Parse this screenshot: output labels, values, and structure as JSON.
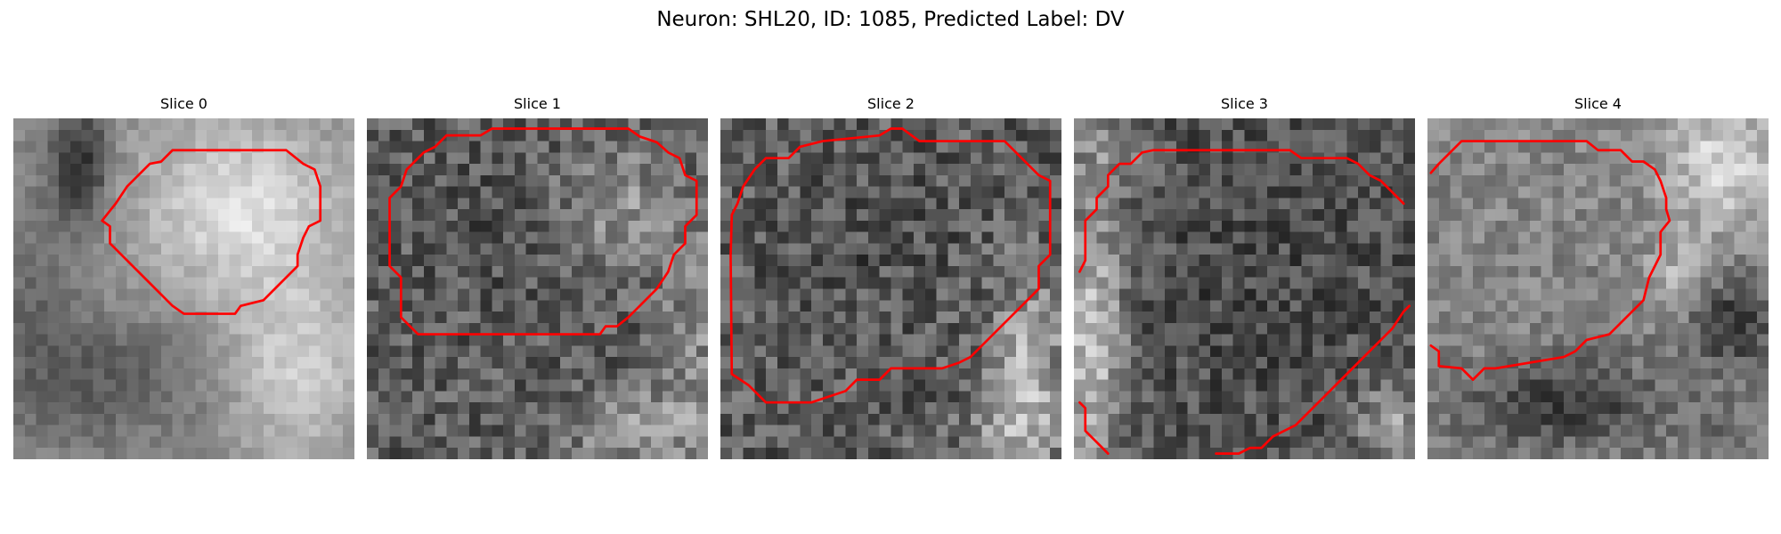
{
  "figure": {
    "title": "Neuron: SHL20, ID: 1085, Predicted Label: DV"
  },
  "colors": {
    "background": "#ffffff",
    "contour": "#ff0000",
    "colormap": "gray"
  },
  "image_grid": 30,
  "panels": [
    {
      "title": "Slice 0",
      "tone": "light-right, dark-left-blob",
      "contours": [
        [
          [
            14,
            2.8
          ],
          [
            24,
            2.8
          ],
          [
            25.5,
            4
          ],
          [
            26.5,
            4.5
          ],
          [
            27,
            6
          ],
          [
            27,
            9
          ],
          [
            26,
            9.5
          ],
          [
            25.5,
            10.5
          ],
          [
            25,
            12
          ],
          [
            25,
            13
          ],
          [
            23,
            15
          ],
          [
            22,
            16
          ],
          [
            20,
            16.5
          ],
          [
            19.5,
            17.2
          ],
          [
            15,
            17.2
          ],
          [
            14,
            16.5
          ],
          [
            12,
            14.5
          ],
          [
            9.5,
            12
          ],
          [
            8.5,
            11
          ],
          [
            8.5,
            9.5
          ],
          [
            7.8,
            9
          ],
          [
            9,
            7.5
          ],
          [
            10,
            6
          ],
          [
            11,
            5
          ],
          [
            12,
            4
          ],
          [
            13,
            3.8
          ],
          [
            14,
            2.8
          ]
        ]
      ]
    },
    {
      "title": "Slice 1",
      "tone": "dark-textured, light-lower-right",
      "contours": [
        [
          [
            11,
            0.9
          ],
          [
            23,
            0.9
          ],
          [
            24,
            1.6
          ],
          [
            25.5,
            2.1
          ],
          [
            26.5,
            3
          ],
          [
            27.5,
            3.5
          ],
          [
            28,
            5
          ],
          [
            29,
            5.5
          ],
          [
            29,
            8.5
          ],
          [
            28,
            9.5
          ],
          [
            28,
            11
          ],
          [
            27,
            12
          ],
          [
            26.5,
            13.5
          ],
          [
            25.5,
            15
          ],
          [
            24,
            16.5
          ],
          [
            23,
            17.5
          ],
          [
            22,
            18.3
          ],
          [
            21,
            18.3
          ],
          [
            20.5,
            19
          ],
          [
            4.5,
            19
          ],
          [
            3,
            17.5
          ],
          [
            3,
            14
          ],
          [
            2,
            13
          ],
          [
            2,
            7
          ],
          [
            3,
            6
          ],
          [
            3.5,
            4.5
          ],
          [
            4,
            4
          ],
          [
            5,
            3
          ],
          [
            6,
            2.5
          ],
          [
            7,
            1.5
          ],
          [
            10,
            1.5
          ],
          [
            11,
            0.9
          ]
        ]
      ]
    },
    {
      "title": "Slice 2",
      "tone": "dark-textured, light-right-edge",
      "contours": [
        [
          [
            15,
            0.9
          ],
          [
            16,
            0.9
          ],
          [
            17.5,
            2
          ],
          [
            25,
            2
          ],
          [
            26,
            3
          ],
          [
            27,
            4
          ],
          [
            28,
            5
          ],
          [
            29,
            5.5
          ],
          [
            29,
            12
          ],
          [
            28,
            13
          ],
          [
            28,
            15
          ],
          [
            26,
            17
          ],
          [
            24,
            19
          ],
          [
            22,
            21
          ],
          [
            21,
            21.5
          ],
          [
            19.5,
            22
          ],
          [
            15,
            22
          ],
          [
            14,
            23
          ],
          [
            12,
            23
          ],
          [
            11,
            24
          ],
          [
            9.5,
            24.5
          ],
          [
            8,
            25
          ],
          [
            4,
            25
          ],
          [
            2.5,
            23.5
          ],
          [
            1,
            22.5
          ],
          [
            0.9,
            12
          ],
          [
            1,
            8.5
          ],
          [
            1.5,
            7.5
          ],
          [
            2,
            6
          ],
          [
            3,
            4.5
          ],
          [
            4,
            3.5
          ],
          [
            6,
            3.5
          ],
          [
            7,
            2.5
          ],
          [
            9,
            2
          ],
          [
            14,
            1.5
          ],
          [
            15,
            0.9
          ]
        ]
      ]
    },
    {
      "title": "Slice 3",
      "tone": "dark-blob, light-left-edge",
      "contours": [
        [
          [
            0.5,
            13.5
          ],
          [
            1,
            12.5
          ],
          [
            1,
            9
          ],
          [
            2,
            8
          ],
          [
            2,
            7
          ],
          [
            3,
            6
          ],
          [
            3,
            5
          ],
          [
            4,
            4
          ],
          [
            5,
            4
          ],
          [
            6,
            3
          ],
          [
            7,
            2.8
          ],
          [
            19,
            2.8
          ],
          [
            20,
            3.5
          ],
          [
            24,
            3.5
          ],
          [
            25,
            4
          ],
          [
            26,
            5
          ],
          [
            27,
            5.5
          ],
          [
            28,
            6.5
          ],
          [
            29,
            7.5
          ]
        ],
        [
          [
            29.5,
            16.5
          ],
          [
            29,
            17
          ],
          [
            28,
            18.5
          ],
          [
            26.5,
            20
          ],
          [
            25.5,
            21
          ],
          [
            24.5,
            22
          ],
          [
            23.5,
            23
          ],
          [
            22.5,
            24
          ],
          [
            21.5,
            25
          ],
          [
            20.5,
            26
          ],
          [
            19.5,
            27
          ],
          [
            18.5,
            27.5
          ],
          [
            17.5,
            28
          ],
          [
            16.5,
            29
          ],
          [
            15.5,
            29
          ],
          [
            14.5,
            29.5
          ],
          [
            12.5,
            29.5
          ]
        ],
        [
          [
            0.5,
            25
          ],
          [
            1,
            25.5
          ],
          [
            1,
            27.5
          ],
          [
            2,
            28.5
          ],
          [
            3,
            29.5
          ]
        ]
      ]
    },
    {
      "title": "Slice 4",
      "tone": "grey, dark-lower-right",
      "contours": [
        [
          [
            0.3,
            4.8
          ],
          [
            1,
            4
          ],
          [
            2,
            3
          ],
          [
            3,
            2
          ],
          [
            14,
            2
          ],
          [
            15,
            2.8
          ],
          [
            17,
            2.8
          ],
          [
            18,
            3.8
          ],
          [
            19,
            3.8
          ],
          [
            20,
            4.5
          ],
          [
            20.5,
            5.5
          ],
          [
            21,
            7
          ],
          [
            21,
            8
          ],
          [
            21.3,
            9
          ],
          [
            20.5,
            10
          ],
          [
            20.5,
            12
          ],
          [
            20,
            13
          ],
          [
            19.5,
            14
          ],
          [
            19,
            16
          ],
          [
            18,
            17
          ],
          [
            17,
            18
          ],
          [
            16,
            19
          ],
          [
            14,
            19.5
          ],
          [
            13,
            20.5
          ],
          [
            12,
            21
          ],
          [
            6,
            22
          ],
          [
            5,
            22
          ],
          [
            4,
            23
          ],
          [
            3,
            22
          ],
          [
            1,
            21.8
          ],
          [
            1,
            20.5
          ],
          [
            0.3,
            20
          ]
        ]
      ]
    }
  ]
}
